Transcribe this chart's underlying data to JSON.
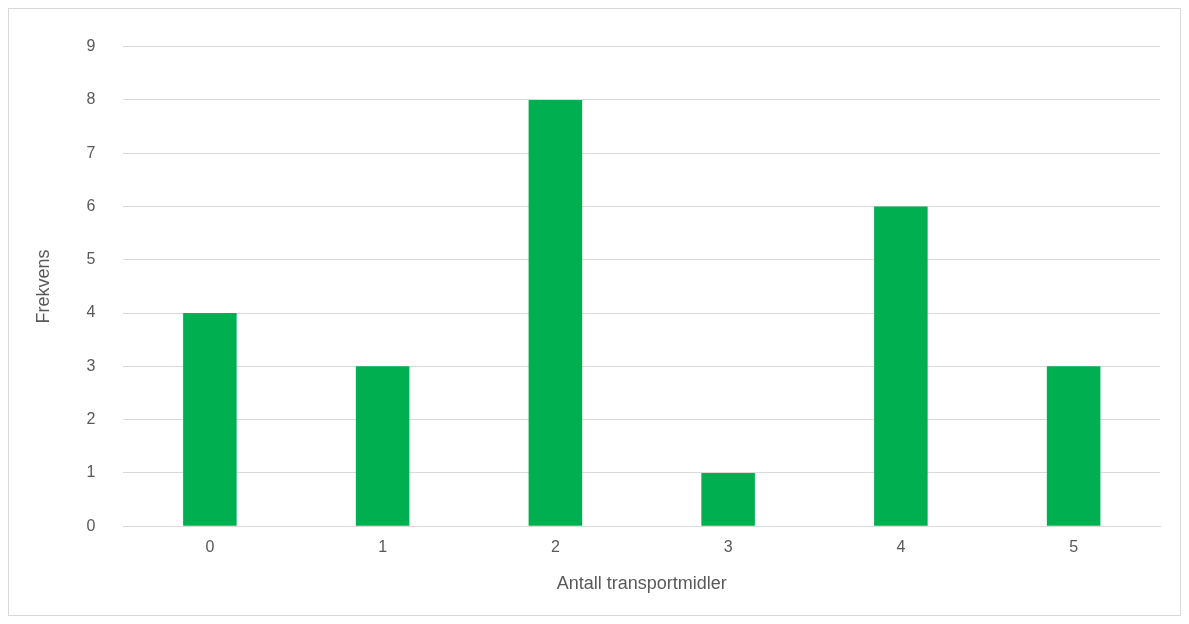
{
  "chart_data": {
    "type": "bar",
    "xlabel": "Antall transportmidler",
    "ylabel": "Frekvens",
    "categories": [
      "0",
      "1",
      "2",
      "3",
      "4",
      "5"
    ],
    "values": [
      4,
      3,
      8,
      1,
      6,
      3
    ],
    "color": "#00b050",
    "ylim": [
      0,
      9
    ],
    "yticks": [
      0,
      1,
      2,
      3,
      4,
      5,
      6,
      7,
      8,
      9
    ],
    "grid": "y",
    "legend": false
  }
}
